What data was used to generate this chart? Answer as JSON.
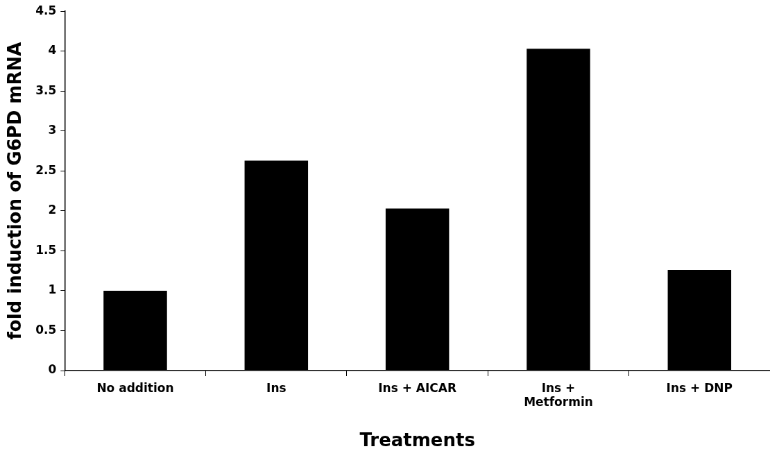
{
  "chart_data": {
    "type": "bar",
    "xlabel": "Treatments",
    "ylabel": "fold induction of G6PD mRNA",
    "categories": [
      "No addition",
      "Ins",
      "Ins + AICAR",
      "Ins + Metformin",
      "Ins + DNP"
    ],
    "values": [
      1.0,
      2.63,
      2.03,
      4.03,
      1.26
    ],
    "color": "#000000",
    "ylim": [
      0,
      4.5
    ],
    "yticks": [
      0,
      0.5,
      1,
      1.5,
      2,
      2.5,
      3,
      3.5,
      4,
      4.5
    ],
    "grid": false,
    "legend": false
  }
}
